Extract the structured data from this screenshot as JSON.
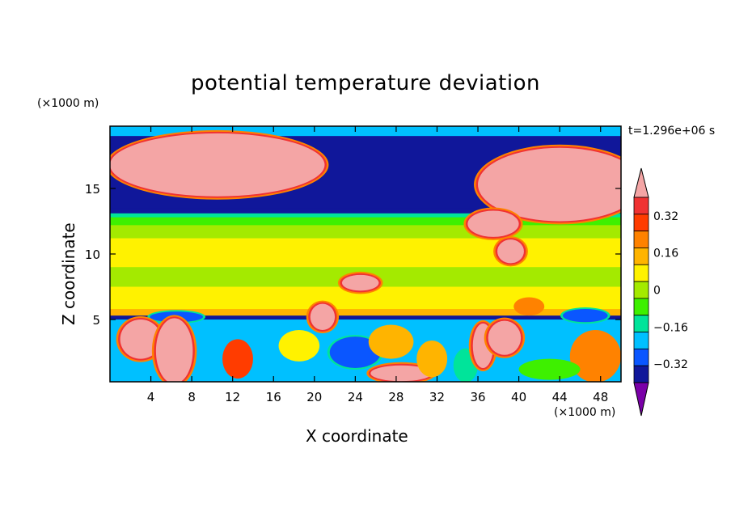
{
  "chart_data": {
    "type": "heatmap",
    "title": "potential temperature deviation",
    "xlabel": "X coordinate",
    "ylabel": "Z coordinate",
    "x_unit": "(×1000 m)",
    "y_unit": "(×1000 m)",
    "time_label": "t=1.296e+06 s",
    "x_ticks": [
      4,
      8,
      12,
      16,
      20,
      24,
      28,
      32,
      36,
      40,
      44,
      48
    ],
    "y_ticks": [
      5,
      10,
      15
    ],
    "xlim": [
      0,
      50
    ],
    "ylim": [
      0.25,
      19.75
    ],
    "colorbar": {
      "levels": [
        -0.48,
        -0.4,
        -0.32,
        -0.24,
        -0.16,
        -0.08,
        0,
        0.08,
        0.16,
        0.24,
        0.32,
        0.4
      ],
      "tick_labels": [
        "0.32",
        "0.16",
        "0",
        "−0.16",
        "−0.32"
      ],
      "tick_values": [
        0.32,
        0.16,
        0,
        -0.16,
        -0.32
      ],
      "colors": [
        "#7a00a8",
        "#10179a",
        "#0a56ff",
        "#00c0ff",
        "#00e49a",
        "#3ef000",
        "#a4ea00",
        "#fff200",
        "#ffb400",
        "#ff8200",
        "#ff3c00",
        "#f03232",
        "#f4a5a5"
      ],
      "extend": "both"
    },
    "bands": [
      {
        "z": [
          19.0,
          19.75
        ],
        "value": -0.3
      },
      {
        "z": [
          13.5,
          19.0
        ],
        "value": -0.46
      },
      {
        "z": [
          13.1,
          13.5
        ],
        "value": -0.42
      },
      {
        "z": [
          12.8,
          13.1
        ],
        "value": -0.18
      },
      {
        "z": [
          12.2,
          12.8
        ],
        "value": -0.1
      },
      {
        "z": [
          11.2,
          12.2
        ],
        "value": -0.02
      },
      {
        "z": [
          10.0,
          11.2
        ],
        "value": 0.03
      },
      {
        "z": [
          9.0,
          10.0
        ],
        "value": 0.02
      },
      {
        "z": [
          7.5,
          9.0
        ],
        "value": -0.04
      },
      {
        "z": [
          5.8,
          7.5
        ],
        "value": 0.03
      },
      {
        "z": [
          5.3,
          5.8
        ],
        "value": 0.08
      },
      {
        "z": [
          5.0,
          5.3
        ],
        "value": -0.42
      }
    ],
    "features": [
      {
        "kind": "blob",
        "x": 10.5,
        "z": 16.8,
        "rx": 10.5,
        "rz": 2.4,
        "value": 0.45
      },
      {
        "kind": "blob",
        "x": 44.0,
        "z": 15.3,
        "rx": 8.0,
        "rz": 2.8,
        "value": 0.45
      },
      {
        "kind": "blob",
        "x": 37.5,
        "z": 12.3,
        "rx": 2.5,
        "rz": 1.0,
        "value": 0.45
      },
      {
        "kind": "blob",
        "x": 39.2,
        "z": 10.2,
        "rx": 1.3,
        "rz": 0.9,
        "value": 0.45
      },
      {
        "kind": "blob",
        "x": 24.5,
        "z": 7.8,
        "rx": 1.8,
        "rz": 0.6,
        "value": 0.45
      },
      {
        "kind": "blob",
        "x": 20.8,
        "z": 5.2,
        "rx": 1.2,
        "rz": 1.0,
        "value": 0.45
      },
      {
        "kind": "blob",
        "x": 41.0,
        "z": 6.0,
        "rx": 1.5,
        "rz": 0.7,
        "value": 0.16
      },
      {
        "kind": "blob",
        "x": 46.5,
        "z": 5.3,
        "rx": 2.2,
        "rz": 0.5,
        "value": -0.34
      },
      {
        "kind": "blob",
        "x": 6.5,
        "z": 5.2,
        "rx": 2.6,
        "rz": 0.4,
        "value": -0.34
      },
      {
        "kind": "blob",
        "x": 3.0,
        "z": 3.5,
        "rx": 2.0,
        "rz": 1.5,
        "value": 0.45
      },
      {
        "kind": "blob",
        "x": 6.3,
        "z": 2.6,
        "rx": 1.8,
        "rz": 2.5,
        "value": 0.45
      },
      {
        "kind": "blob",
        "x": 12.5,
        "z": 2.0,
        "rx": 1.5,
        "rz": 1.5,
        "value": 0.3
      },
      {
        "kind": "blob",
        "x": 18.5,
        "z": 3.0,
        "rx": 2.0,
        "rz": 1.2,
        "value": 0.05
      },
      {
        "kind": "blob",
        "x": 24.0,
        "z": 2.5,
        "rx": 2.5,
        "rz": 1.2,
        "value": -0.4
      },
      {
        "kind": "blob",
        "x": 27.5,
        "z": 3.3,
        "rx": 2.2,
        "rz": 1.3,
        "value": 0.1
      },
      {
        "kind": "blob",
        "x": 28.5,
        "z": 0.9,
        "rx": 3.0,
        "rz": 0.6,
        "value": 0.45
      },
      {
        "kind": "blob",
        "x": 31.5,
        "z": 2.0,
        "rx": 1.5,
        "rz": 1.4,
        "value": 0.15
      },
      {
        "kind": "blob",
        "x": 34.8,
        "z": 1.5,
        "rx": 1.2,
        "rz": 1.3,
        "value": -0.2
      },
      {
        "kind": "blob",
        "x": 36.5,
        "z": 3.0,
        "rx": 1.0,
        "rz": 1.7,
        "value": 0.45
      },
      {
        "kind": "blob",
        "x": 38.6,
        "z": 3.6,
        "rx": 1.6,
        "rz": 1.3,
        "value": 0.45
      },
      {
        "kind": "blob",
        "x": 47.5,
        "z": 2.2,
        "rx": 2.5,
        "rz": 2.0,
        "value": 0.2
      },
      {
        "kind": "blob",
        "x": 43.0,
        "z": 1.2,
        "rx": 3.0,
        "rz": 0.8,
        "value": -0.1
      }
    ]
  }
}
